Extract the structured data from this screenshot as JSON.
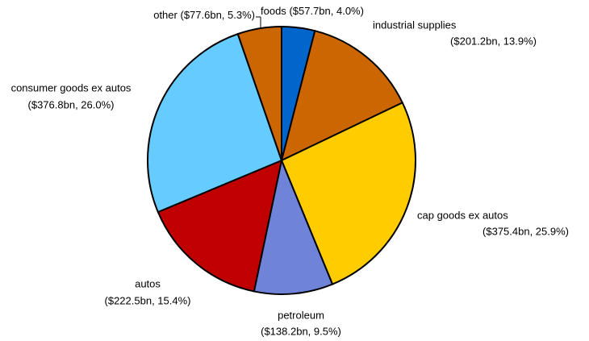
{
  "chart_data": {
    "type": "pie",
    "categories": [
      "foods",
      "industrial supplies",
      "cap goods ex autos",
      "petroleum",
      "autos",
      "consumer goods ex autos",
      "other"
    ],
    "values": [
      4.0,
      13.9,
      25.9,
      9.5,
      15.4,
      26.0,
      5.3
    ],
    "value_labels": [
      "($57.7bn, 4.0%)",
      "($201.2bn, 13.9%)",
      "($375.4bn, 25.9%)",
      "($138.2bn, 9.5%)",
      "($222.5bn, 15.4%)",
      "($376.8bn, 26.0%)",
      "($77.6bn, 5.3%)"
    ],
    "colors": [
      "#0066cc",
      "#cc6600",
      "#ffcc00",
      "#6f84d8",
      "#c00000",
      "#66ccff",
      "#cc6600"
    ]
  }
}
